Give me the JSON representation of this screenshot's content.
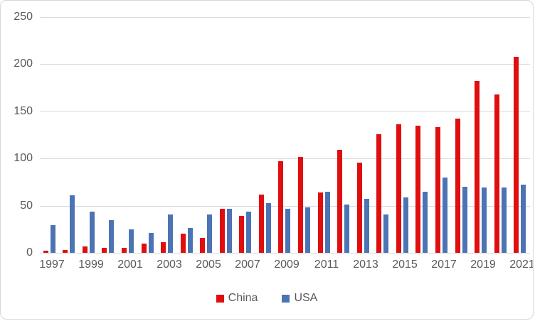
{
  "chart_data": {
    "type": "bar",
    "title": "",
    "xlabel": "",
    "ylabel": "",
    "categories": [
      "1997",
      "1998",
      "1999",
      "2000",
      "2001",
      "2002",
      "2003",
      "2004",
      "2005",
      "2006",
      "2007",
      "2008",
      "2009",
      "2010",
      "2011",
      "2012",
      "2013",
      "2014",
      "2015",
      "2016",
      "2017",
      "2018",
      "2019",
      "2020",
      "2021"
    ],
    "series": [
      {
        "name": "China",
        "color": "#e00e0e",
        "values": [
          2,
          3,
          7,
          5,
          5,
          10,
          11,
          20,
          16,
          47,
          39,
          62,
          97,
          102,
          64,
          109,
          96,
          126,
          136,
          135,
          133,
          142,
          182,
          168,
          208
        ]
      },
      {
        "name": "USA",
        "color": "#4c74b4",
        "values": [
          29,
          61,
          44,
          35,
          25,
          21,
          41,
          26,
          41,
          47,
          44,
          53,
          47,
          48,
          65,
          51,
          57,
          41,
          59,
          65,
          80,
          70,
          69,
          69,
          72
        ]
      }
    ],
    "ylim": [
      0,
      250
    ],
    "yticks": [
      0,
      50,
      100,
      150,
      200,
      250
    ],
    "x_tick_labels_shown": [
      "1997",
      "1999",
      "2001",
      "2003",
      "2005",
      "2007",
      "2009",
      "2011",
      "2013",
      "2015",
      "2017",
      "2019",
      "2021"
    ],
    "grid": "horizontal",
    "gridline_color": "#d9d9d9",
    "tick_label_color": "#595959",
    "legend_position": "bottom"
  }
}
